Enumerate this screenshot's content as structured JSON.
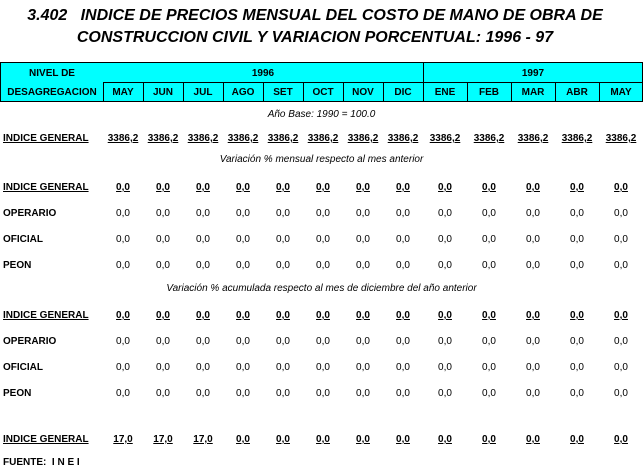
{
  "title": [
    "3.402   INDICE DE PRECIOS MENSUAL DEL COSTO DE MANO DE OBRA DE",
    "CONSTRUCCION CIVIL Y VARIACION PORCENTUAL: 1996 - 97"
  ],
  "header": {
    "level": [
      "NIVEL DE",
      "DESAGREGACION"
    ],
    "years": [
      {
        "label": "1996",
        "months": [
          "MAY",
          "JUN",
          "JUL",
          "AGO",
          "SET",
          "OCT",
          "NOV",
          "DIC"
        ]
      },
      {
        "label": "1997",
        "months": [
          "ENE",
          "FEB",
          "MAR",
          "ABR",
          "MAY"
        ]
      }
    ]
  },
  "sections": [
    {
      "note": "Año Base: 1990 = 100.0",
      "rows": [
        {
          "label": "INDICE GENERAL",
          "values": [
            "3386,2",
            "3386,2",
            "3386,2",
            "3386,2",
            "3386,2",
            "3386,2",
            "3386,2",
            "3386,2",
            "3386,2",
            "3386,2",
            "3386,2",
            "3386,2",
            "3386,2"
          ]
        }
      ]
    },
    {
      "note": "Variación % mensual respecto al mes anterior",
      "rows": [
        {
          "label": "INDICE GENERAL",
          "values": [
            "0,0",
            "0,0",
            "0,0",
            "0,0",
            "0,0",
            "0,0",
            "0,0",
            "0,0",
            "0,0",
            "0,0",
            "0,0",
            "0,0",
            "0,0"
          ]
        },
        {
          "label": "OPERARIO",
          "values": [
            "0,0",
            "0,0",
            "0,0",
            "0,0",
            "0,0",
            "0,0",
            "0,0",
            "0,0",
            "0,0",
            "0,0",
            "0,0",
            "0,0",
            "0,0"
          ]
        },
        {
          "label": "OFICIAL",
          "values": [
            "0,0",
            "0,0",
            "0,0",
            "0,0",
            "0,0",
            "0,0",
            "0,0",
            "0,0",
            "0,0",
            "0,0",
            "0,0",
            "0,0",
            "0,0"
          ]
        },
        {
          "label": "PEON",
          "values": [
            "0,0",
            "0,0",
            "0,0",
            "0,0",
            "0,0",
            "0,0",
            "0,0",
            "0,0",
            "0,0",
            "0,0",
            "0,0",
            "0,0",
            "0,0"
          ]
        }
      ]
    },
    {
      "note": "Variación % acumulada respecto al mes de diciembre del año anterior",
      "rows": [
        {
          "label": "INDICE GENERAL",
          "values": [
            "0,0",
            "0,0",
            "0,0",
            "0,0",
            "0,0",
            "0,0",
            "0,0",
            "0,0",
            "0,0",
            "0,0",
            "0,0",
            "0,0",
            "0,0"
          ]
        },
        {
          "label": "OPERARIO",
          "values": [
            "0,0",
            "0,0",
            "0,0",
            "0,0",
            "0,0",
            "0,0",
            "0,0",
            "0,0",
            "0,0",
            "0,0",
            "0,0",
            "0,0",
            "0,0"
          ]
        },
        {
          "label": "OFICIAL",
          "values": [
            "0,0",
            "0,0",
            "0,0",
            "0,0",
            "0,0",
            "0,0",
            "0,0",
            "0,0",
            "0,0",
            "0,0",
            "0,0",
            "0,0",
            "0,0"
          ]
        },
        {
          "label": "PEON",
          "values": [
            "0,0",
            "0,0",
            "0,0",
            "0,0",
            "0,0",
            "0,0",
            "0,0",
            "0,0",
            "0,0",
            "0,0",
            "0,0",
            "0,0",
            "0,0"
          ]
        }
      ]
    },
    {
      "rows": [
        {
          "label": "INDICE GENERAL",
          "values": [
            "17,0",
            "17,0",
            "17,0",
            "0,0",
            "0,0",
            "0,0",
            "0,0",
            "0,0",
            "0,0",
            "0,0",
            "0,0",
            "0,0",
            "0,0"
          ]
        }
      ]
    }
  ],
  "source": "FUENTE:  I N E I"
}
